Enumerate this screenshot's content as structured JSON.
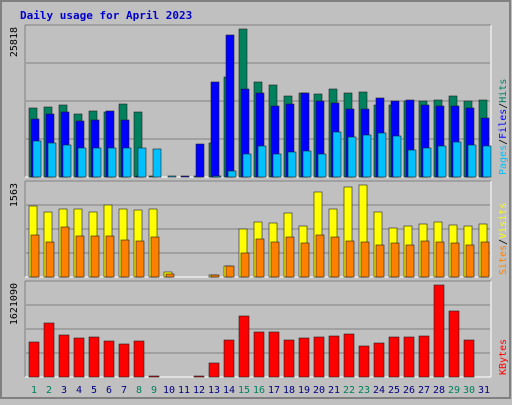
{
  "title": "Daily usage for April 2023",
  "colors": {
    "background": "#c0c0c0",
    "title": "#0000cc",
    "hits": "#00805c",
    "files": "#0000ff",
    "pages": "#00c0ff",
    "visits": "#ffff00",
    "sites": "#ff8000",
    "kbytes": "#ff0000",
    "weekday_label": "#000080",
    "weekend_label": "#00805c"
  },
  "chart_data": [
    {
      "type": "bar",
      "panel": "hits-files-pages",
      "y_max_label": "25818",
      "ylim": [
        0,
        25818
      ],
      "legend": [
        "Pages",
        "Files",
        "Hits"
      ],
      "legend_separator": "/",
      "grid": true,
      "categories": [
        "1",
        "2",
        "3",
        "4",
        "5",
        "6",
        "7",
        "8",
        "9",
        "10",
        "11",
        "12",
        "13",
        "14",
        "15",
        "16",
        "17",
        "18",
        "19",
        "20",
        "21",
        "22",
        "23",
        "24",
        "25",
        "26",
        "27",
        "28",
        "29",
        "30",
        "31"
      ],
      "series": [
        {
          "name": "Hits",
          "values": [
            12000,
            12200,
            12600,
            11000,
            11600,
            11300,
            12800,
            11300,
            250,
            0,
            0,
            250,
            6000,
            17400,
            25818,
            16600,
            16000,
            14200,
            14600,
            14500,
            15300,
            14600,
            14800,
            12600,
            12600,
            13300,
            13200,
            13400,
            14100,
            13300,
            13400
          ]
        },
        {
          "name": "Files",
          "values": [
            10200,
            11000,
            11300,
            9800,
            10000,
            11600,
            10000,
            100,
            0,
            0,
            100,
            5800,
            16500,
            24800,
            15300,
            14600,
            12400,
            12800,
            14600,
            13300,
            12900,
            11800,
            11800,
            13700,
            13300,
            13400,
            12600,
            12400,
            12400,
            12000,
            10300
          ]
        },
        {
          "name": "Pages",
          "values": [
            6300,
            6000,
            5600,
            5000,
            5000,
            5100,
            5000,
            5000,
            4800,
            50,
            0,
            0,
            50,
            1000,
            4000,
            5400,
            4000,
            4400,
            4500,
            4000,
            7900,
            6900,
            7400,
            7600,
            7200,
            4700,
            5000,
            5400,
            6100,
            5500,
            5400
          ]
        }
      ]
    },
    {
      "type": "bar",
      "panel": "visits-sites",
      "y_max_label": "1563",
      "ylim": [
        0,
        1563
      ],
      "legend": [
        "Sites",
        "Visits"
      ],
      "legend_separator": "/",
      "grid": true,
      "categories": [
        "1",
        "2",
        "3",
        "4",
        "5",
        "6",
        "7",
        "8",
        "9",
        "10",
        "11",
        "12",
        "13",
        "14",
        "15",
        "16",
        "17",
        "18",
        "19",
        "20",
        "21",
        "22",
        "23",
        "24",
        "25",
        "26",
        "27",
        "28",
        "29",
        "30",
        "31"
      ],
      "series": [
        {
          "name": "Visits",
          "values": [
            1206,
            1100,
            1150,
            1150,
            1100,
            1230,
            1150,
            1130,
            1160,
            80,
            0,
            0,
            30,
            190,
            810,
            930,
            920,
            1080,
            870,
            1450,
            1160,
            1530,
            1560,
            1110,
            830,
            870,
            900,
            930,
            880,
            860,
            900
          ]
        },
        {
          "name": "Sites",
          "values": [
            720,
            600,
            850,
            700,
            700,
            700,
            630,
            620,
            680,
            50,
            0,
            0,
            30,
            180,
            410,
            640,
            590,
            680,
            570,
            710,
            680,
            620,
            600,
            550,
            570,
            550,
            610,
            600,
            580,
            550,
            590
          ]
        }
      ]
    },
    {
      "type": "bar",
      "panel": "kbytes",
      "y_max_label": "1621090",
      "ylim": [
        0,
        1621090
      ],
      "legend": [
        "KBytes"
      ],
      "grid": true,
      "categories": [
        "1",
        "2",
        "3",
        "4",
        "5",
        "6",
        "7",
        "8",
        "9",
        "10",
        "11",
        "12",
        "13",
        "14",
        "15",
        "16",
        "17",
        "18",
        "19",
        "20",
        "21",
        "22",
        "23",
        "24",
        "25",
        "26",
        "27",
        "28",
        "29",
        "30",
        "31"
      ],
      "series": [
        {
          "name": "KBytes",
          "values": [
            620000,
            960000,
            740000,
            680000,
            700000,
            630000,
            580000,
            630000,
            15000,
            0,
            0,
            15000,
            240000,
            650000,
            1080000,
            800000,
            800000,
            660000,
            680000,
            710000,
            730000,
            760000,
            540000,
            600000,
            700000,
            700000,
            730000,
            1621090,
            1160000,
            660000,
            0
          ]
        }
      ]
    }
  ],
  "weekend_days": [
    "1",
    "2",
    "8",
    "9",
    "15",
    "16",
    "22",
    "23",
    "29",
    "30"
  ]
}
